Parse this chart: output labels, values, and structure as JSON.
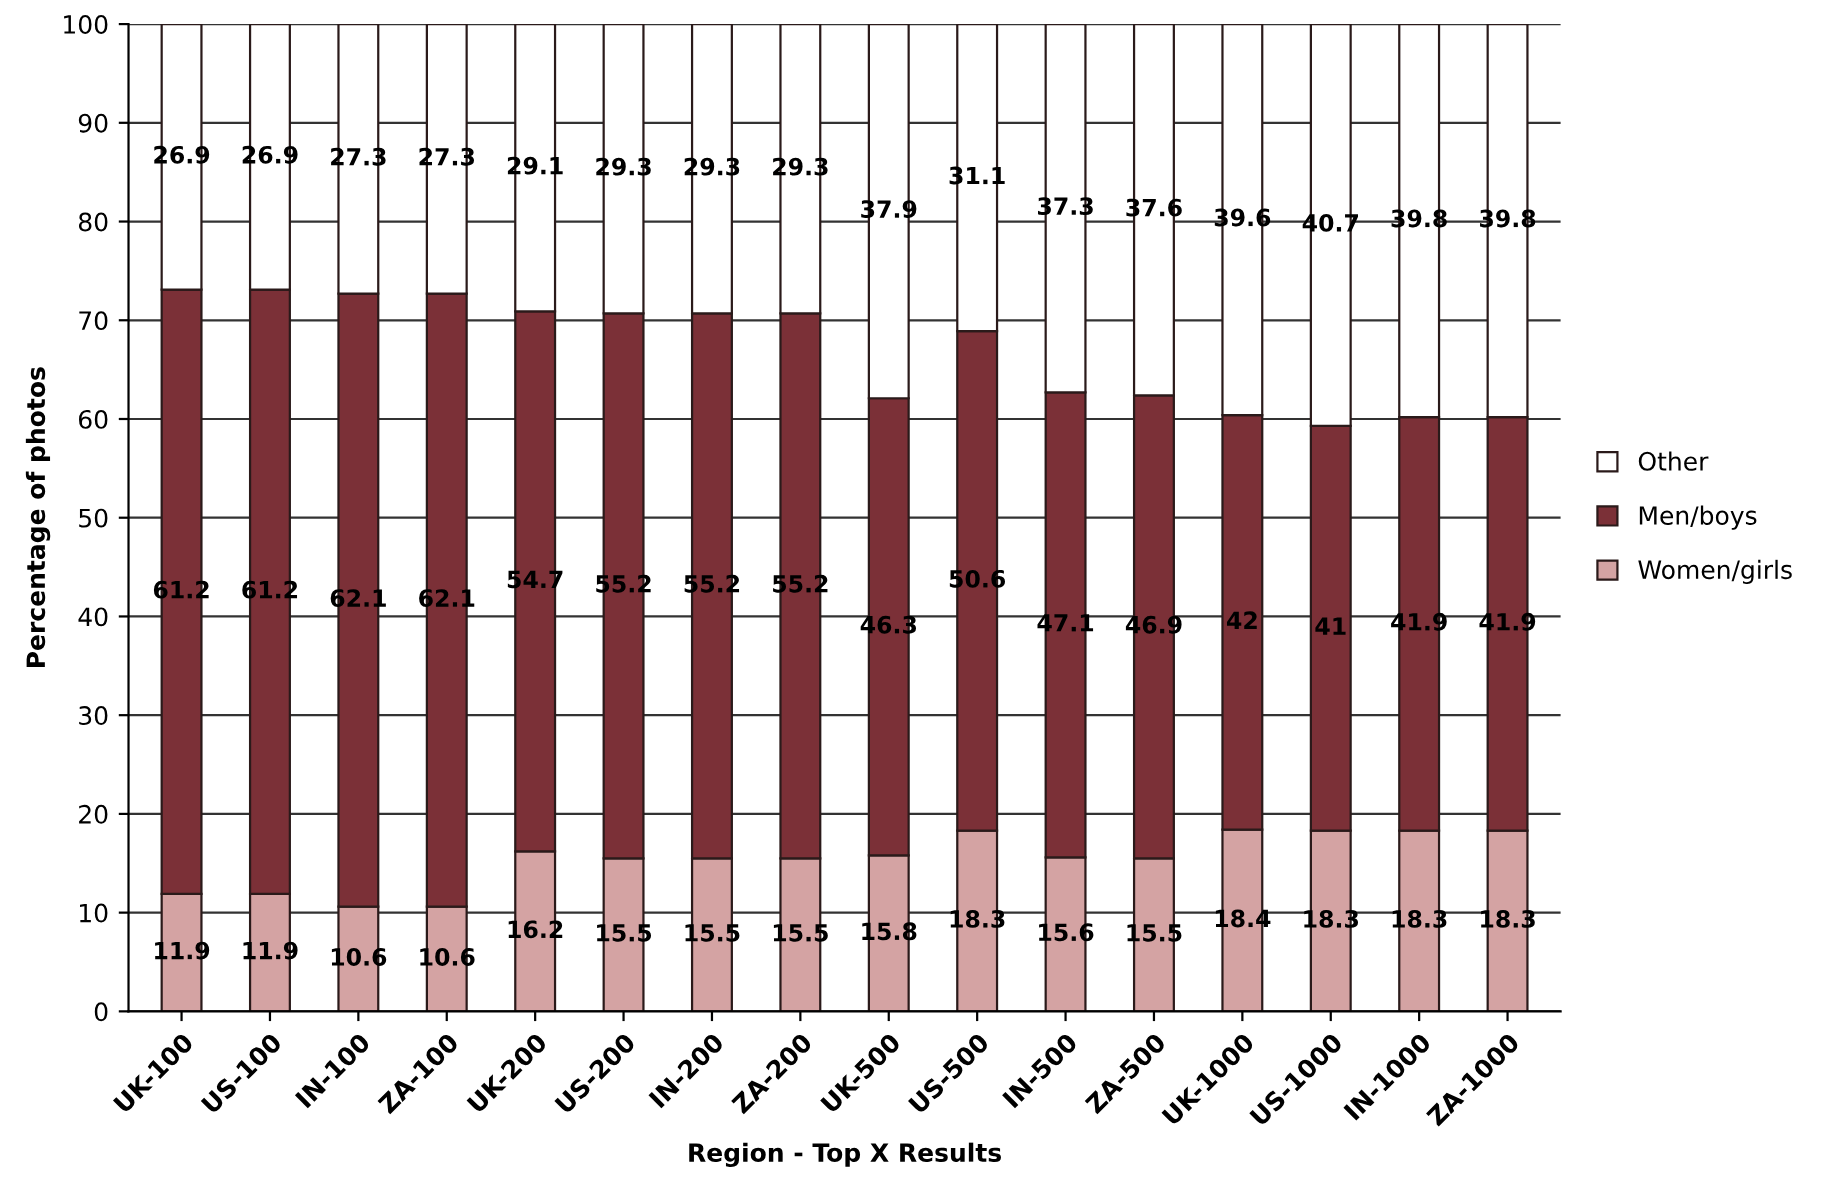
{
  "chart_data": {
    "type": "bar",
    "stacked": true,
    "xlabel": "Region - Top X Results",
    "ylabel": "Percentage of photos",
    "categories": [
      "UK-100",
      "US-100",
      "IN-100",
      "ZA-100",
      "UK-200",
      "US-200",
      "IN-200",
      "ZA-200",
      "UK-500",
      "US-500",
      "IN-500",
      "ZA-500",
      "UK-1000",
      "US-1000",
      "IN-1000",
      "ZA-1000"
    ],
    "series": [
      {
        "name": "Women/girls",
        "color": "#d4a3a3",
        "values": [
          11.9,
          11.9,
          10.6,
          10.6,
          16.2,
          15.5,
          15.5,
          15.5,
          15.8,
          18.3,
          15.6,
          15.5,
          18.4,
          18.3,
          18.3,
          18.3
        ]
      },
      {
        "name": "Men/boys",
        "color": "#7b3037",
        "values": [
          61.2,
          61.2,
          62.1,
          62.1,
          54.7,
          55.2,
          55.2,
          55.2,
          46.3,
          50.6,
          47.1,
          46.9,
          42,
          41,
          41.9,
          41.9
        ]
      },
      {
        "name": "Other",
        "color": "#ffffff",
        "values": [
          26.9,
          26.9,
          27.3,
          27.3,
          29.1,
          29.3,
          29.3,
          29.3,
          37.9,
          31.1,
          37.3,
          37.6,
          39.6,
          40.7,
          39.8,
          39.8
        ]
      }
    ],
    "ylim": [
      0,
      100
    ],
    "yticks": [
      0,
      10,
      20,
      30,
      40,
      50,
      60,
      70,
      80,
      90,
      100
    ],
    "grid": "y",
    "legend": "right",
    "data_labels": true
  }
}
